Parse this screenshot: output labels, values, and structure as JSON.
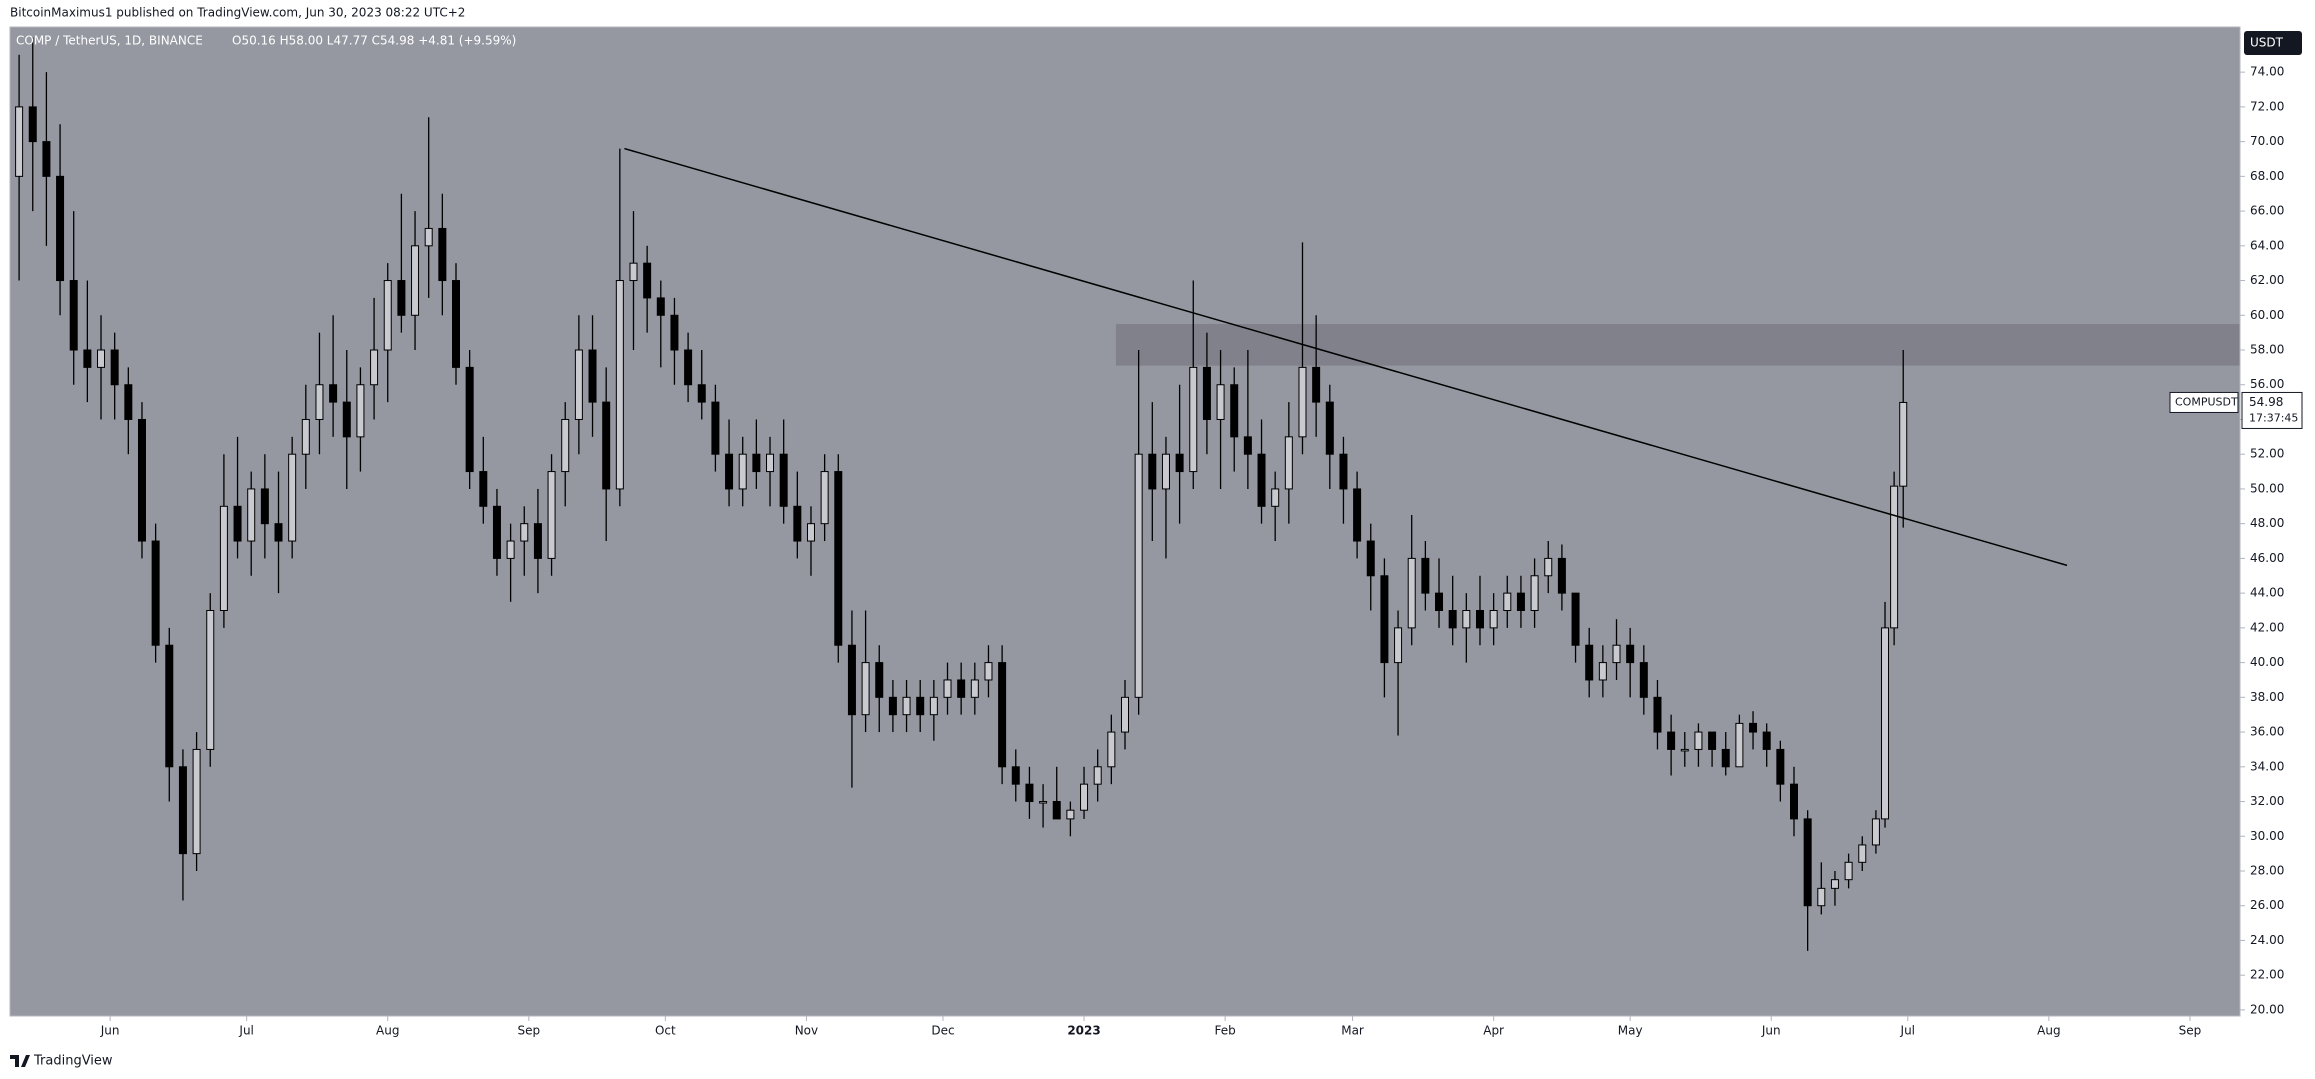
{
  "header": "BitcoinMaximus1 published on TradingView.com, Jun 30, 2023 08:22 UTC+2",
  "footer": "TradingView",
  "chart_data": {
    "type": "candlestick",
    "symbol_title": "COMP / TetherUS, 1D, BINANCE",
    "ohlc_legend": "O50.16 H58.00 L47.77 C54.98 +4.81 (+9.59%)",
    "currency": "USDT",
    "symbol_tag": "COMPUSDT",
    "last_price": 54.98,
    "countdown": "17:37:45",
    "up_color": "#c8cad0",
    "down_color": "#000000",
    "background": "#9598a1",
    "xlim": [
      -22,
      468
    ],
    "ylim": [
      19.65,
      76.6
    ],
    "xticks": [
      {
        "value": 0,
        "label": "Jun"
      },
      {
        "value": 30,
        "label": "Jul"
      },
      {
        "value": 61,
        "label": "Aug"
      },
      {
        "value": 92,
        "label": "Sep"
      },
      {
        "value": 122,
        "label": "Oct"
      },
      {
        "value": 153,
        "label": "Nov"
      },
      {
        "value": 183,
        "label": "Dec"
      },
      {
        "value": 214,
        "label": "2023"
      },
      {
        "value": 245,
        "label": "Feb"
      },
      {
        "value": 273,
        "label": "Mar"
      },
      {
        "value": 304,
        "label": "Apr"
      },
      {
        "value": 334,
        "label": "May"
      },
      {
        "value": 365,
        "label": "Jun"
      },
      {
        "value": 395,
        "label": "Jul"
      },
      {
        "value": 426,
        "label": "Aug"
      },
      {
        "value": 457,
        "label": "Sep"
      }
    ],
    "yticks": [
      {
        "value": 20,
        "label": "20.00"
      },
      {
        "value": 22,
        "label": "22.00"
      },
      {
        "value": 24,
        "label": "24.00"
      },
      {
        "value": 26,
        "label": "26.00"
      },
      {
        "value": 28,
        "label": "28.00"
      },
      {
        "value": 30,
        "label": "30.00"
      },
      {
        "value": 32,
        "label": "32.00"
      },
      {
        "value": 34,
        "label": "34.00"
      },
      {
        "value": 36,
        "label": "36.00"
      },
      {
        "value": 38,
        "label": "38.00"
      },
      {
        "value": 40,
        "label": "40.00"
      },
      {
        "value": 42,
        "label": "42.00"
      },
      {
        "value": 44,
        "label": "44.00"
      },
      {
        "value": 46,
        "label": "46.00"
      },
      {
        "value": 48,
        "label": "48.00"
      },
      {
        "value": 50,
        "label": "50.00"
      },
      {
        "value": 52,
        "label": "52.00"
      },
      {
        "value": 54,
        "label": "54.00"
      },
      {
        "value": 56,
        "label": "56.00"
      },
      {
        "value": 58,
        "label": "58.00"
      },
      {
        "value": 60,
        "label": "60.00"
      },
      {
        "value": 62,
        "label": "62.00"
      },
      {
        "value": 64,
        "label": "64.00"
      },
      {
        "value": 66,
        "label": "66.00"
      },
      {
        "value": 68,
        "label": "68.00"
      },
      {
        "value": 70,
        "label": "70.00"
      },
      {
        "value": 72,
        "label": "72.00"
      },
      {
        "value": 74,
        "label": "74.00"
      }
    ],
    "trendline": {
      "x": [
        113,
        430
      ],
      "y": [
        69.6,
        45.6
      ],
      "color": "#000000"
    },
    "zone": {
      "x_start": 221,
      "y": [
        57.1,
        59.5
      ],
      "color": "#80818b"
    },
    "x": [
      -20,
      -17,
      -14,
      -11,
      -8,
      -5,
      -2,
      1,
      4,
      7,
      10,
      13,
      16,
      19,
      22,
      25,
      28,
      31,
      34,
      37,
      40,
      43,
      46,
      49,
      52,
      55,
      58,
      61,
      64,
      67,
      70,
      73,
      76,
      79,
      82,
      85,
      88,
      91,
      94,
      97,
      100,
      103,
      106,
      109,
      112,
      115,
      118,
      121,
      124,
      127,
      130,
      133,
      136,
      139,
      142,
      145,
      148,
      151,
      154,
      157,
      160,
      163,
      166,
      169,
      172,
      175,
      178,
      181,
      184,
      187,
      190,
      193,
      196,
      199,
      202,
      205,
      208,
      211,
      214,
      217,
      220,
      223,
      226,
      229,
      232,
      235,
      238,
      241,
      244,
      247,
      250,
      253,
      256,
      259,
      262,
      265,
      268,
      271,
      274,
      277,
      280,
      283,
      286,
      289,
      292,
      295,
      298,
      301,
      304,
      307,
      310,
      313,
      316,
      319,
      322,
      325,
      328,
      331,
      334,
      337,
      340,
      343,
      346,
      349,
      352,
      355,
      358,
      361,
      364,
      367,
      370,
      373,
      376,
      379,
      382,
      385,
      388,
      390,
      392,
      394
    ],
    "open": [
      68,
      72,
      70,
      68,
      62,
      58,
      57,
      58,
      56,
      54,
      47,
      41,
      34,
      29,
      35,
      43,
      49,
      47,
      50,
      48,
      47,
      52,
      54,
      56,
      55,
      53,
      56,
      58,
      62,
      60,
      64,
      65,
      62,
      57,
      51,
      49,
      46,
      47,
      48,
      46,
      51,
      54,
      58,
      55,
      50,
      62,
      63,
      61,
      60,
      58,
      56,
      55,
      52,
      50,
      52,
      51,
      52,
      49,
      47,
      48,
      51,
      41,
      37,
      40,
      38,
      37,
      38,
      37,
      38,
      39,
      38,
      39,
      40,
      34,
      33,
      32,
      32,
      31,
      31.5,
      33,
      34,
      36,
      38,
      52,
      50,
      52,
      51,
      57,
      54,
      56,
      53,
      52,
      49,
      50,
      53,
      57,
      55,
      52,
      50,
      47,
      45,
      40,
      42,
      46,
      44,
      43,
      42,
      43,
      42,
      43,
      44,
      43,
      45,
      46,
      44,
      41,
      39,
      40,
      41,
      40,
      38,
      36,
      35,
      35,
      36,
      35,
      34,
      36.5,
      36,
      35,
      33,
      31,
      26,
      27,
      27.5,
      28.5,
      29.5,
      31,
      42,
      50.16
    ],
    "high": [
      75,
      76,
      74,
      71,
      66,
      62,
      60,
      59,
      57,
      55,
      48,
      42,
      35,
      36,
      44,
      52,
      53,
      51,
      52,
      51,
      53,
      56,
      59,
      60,
      58,
      57,
      61,
      63,
      67,
      66,
      71.4,
      67,
      63,
      58,
      53,
      50,
      48,
      49,
      50,
      52,
      55,
      60,
      60,
      57,
      69.6,
      66,
      64,
      62,
      61,
      59,
      58,
      56,
      54,
      53,
      54,
      53,
      54,
      51,
      49,
      52,
      52,
      43,
      43,
      41,
      39,
      39,
      39,
      39,
      40,
      40,
      40,
      41,
      41,
      35,
      34,
      33,
      34,
      32,
      34,
      35,
      37,
      39,
      58,
      55,
      53,
      56,
      62,
      59,
      58,
      57,
      58,
      54,
      51,
      55,
      64.2,
      60,
      56,
      53,
      51,
      48,
      46,
      43,
      48.5,
      47,
      46,
      45,
      44,
      45,
      44,
      45,
      45,
      46,
      47,
      46.8,
      44,
      42,
      41,
      42.5,
      42,
      41,
      39,
      37,
      36,
      36.5,
      36,
      36,
      37,
      37.2,
      36.5,
      35.5,
      34,
      31.5,
      28.5,
      28,
      29,
      30,
      31.5,
      43.5,
      51,
      58
    ],
    "low": [
      62,
      66,
      64,
      60,
      56,
      55,
      54,
      54,
      52,
      46,
      40,
      32,
      26.3,
      28,
      34,
      42,
      46,
      45,
      46,
      44,
      46,
      50,
      52,
      53,
      50,
      51,
      54,
      55,
      59,
      58,
      61,
      60,
      56,
      50,
      48,
      45,
      43.5,
      45,
      44,
      45,
      49,
      52,
      53,
      47,
      49,
      58,
      59,
      57,
      56,
      55,
      54,
      51,
      49,
      49,
      50,
      49,
      48,
      46,
      45,
      47,
      40,
      32.8,
      36,
      36,
      36,
      36,
      36,
      35.5,
      37,
      37,
      37,
      38,
      33,
      32,
      31,
      30.5,
      31,
      30,
      31,
      32,
      33,
      35,
      37,
      47,
      46,
      48,
      50,
      52,
      50,
      51,
      50,
      48,
      47,
      48,
      52,
      53,
      50,
      48,
      46,
      43,
      38,
      35.8,
      41,
      43,
      42,
      41,
      40,
      41,
      41,
      42,
      42,
      42,
      44,
      43,
      40,
      38,
      38,
      39,
      38,
      37,
      35,
      33.5,
      34,
      34,
      34,
      33.5,
      34,
      35,
      34,
      32,
      30,
      23.4,
      25.5,
      26,
      27,
      28,
      29,
      30.5,
      41,
      47.77
    ],
    "close": [
      72,
      70,
      68,
      62,
      58,
      57,
      58,
      56,
      54,
      47,
      41,
      34,
      29,
      35,
      43,
      49,
      47,
      50,
      48,
      47,
      52,
      54,
      56,
      55,
      53,
      56,
      58,
      62,
      60,
      64,
      65,
      62,
      57,
      51,
      49,
      46,
      47,
      48,
      46,
      51,
      54,
      58,
      55,
      50,
      62,
      63,
      61,
      60,
      58,
      56,
      55,
      52,
      50,
      52,
      51,
      52,
      49,
      47,
      48,
      51,
      41,
      37,
      40,
      38,
      37,
      38,
      37,
      38,
      39,
      38,
      39,
      40,
      34,
      33,
      32,
      32,
      31,
      31.5,
      33,
      34,
      36,
      38,
      52,
      50,
      52,
      51,
      57,
      54,
      56,
      53,
      52,
      49,
      50,
      53,
      57,
      55,
      52,
      50,
      47,
      45,
      40,
      42,
      46,
      44,
      43,
      42,
      43,
      42,
      43,
      44,
      43,
      45,
      46,
      44,
      41,
      39,
      40,
      41,
      40,
      38,
      36,
      35,
      35,
      36,
      35,
      34,
      36.5,
      36,
      35,
      33,
      31,
      26,
      27,
      27.5,
      28.5,
      29.5,
      31,
      42,
      50.16,
      54.98
    ]
  }
}
